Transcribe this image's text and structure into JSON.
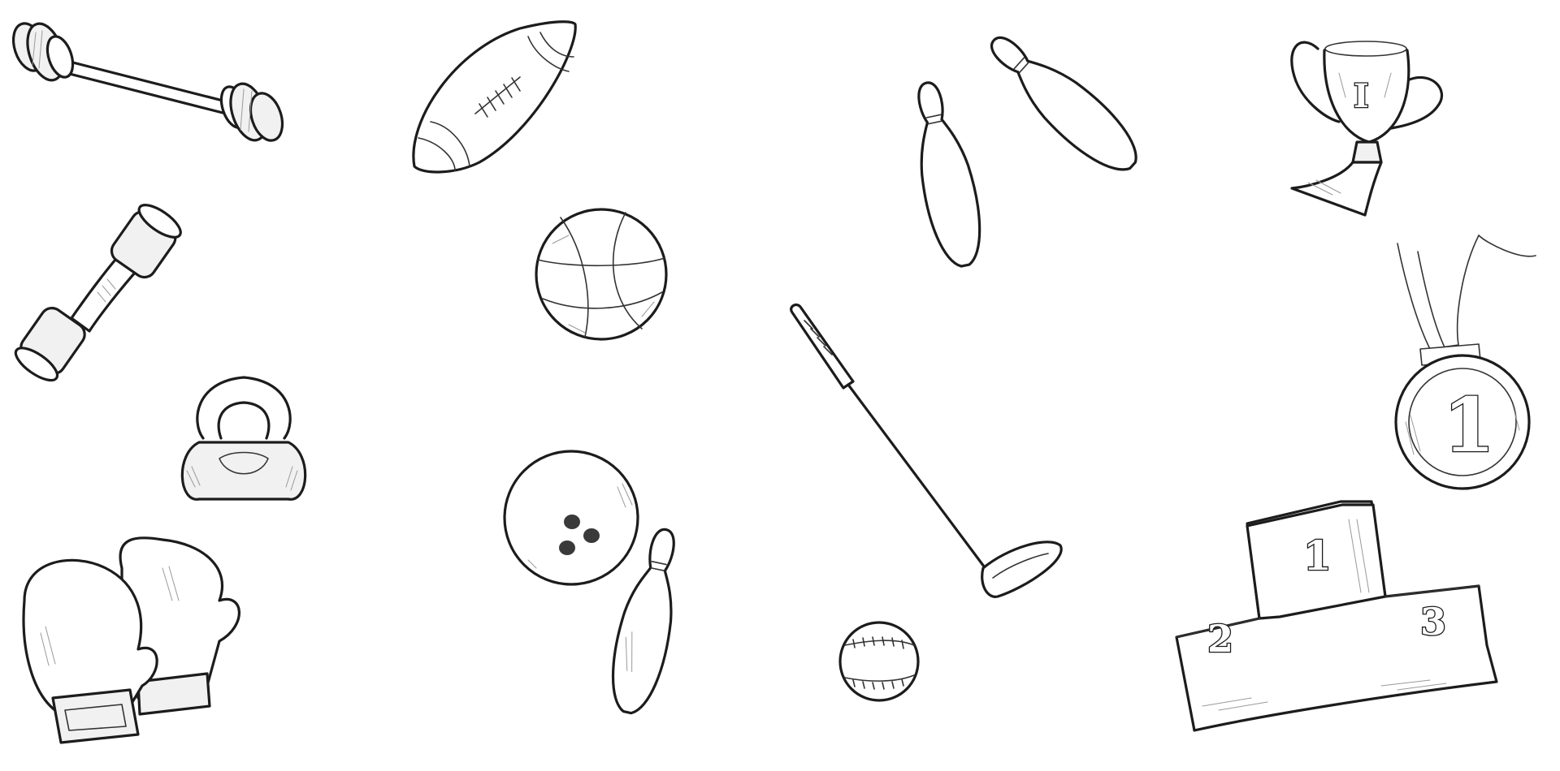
{
  "scene": {
    "style": "hand-drawn line art of sports equipment",
    "colors": {
      "ink": "#1c1c1c",
      "shade": "#9a9a9a",
      "background": "#ffffff"
    }
  },
  "labels": {
    "trophy_numeral": "I",
    "medal_numeral": "1",
    "podium_first": "1",
    "podium_second": "2",
    "podium_third": "3"
  }
}
